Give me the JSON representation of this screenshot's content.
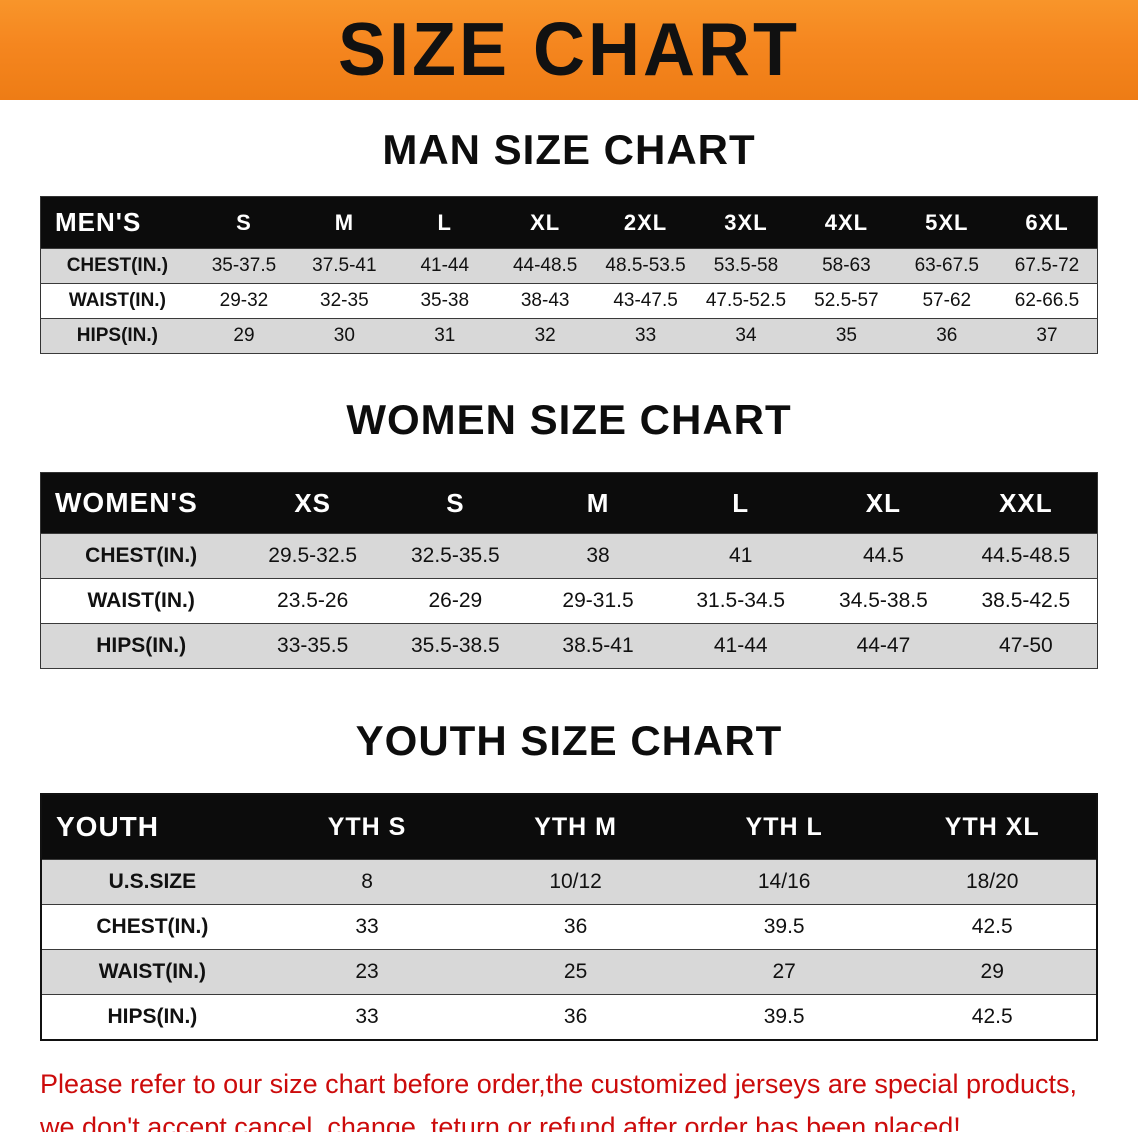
{
  "banner": {
    "title": "SIZE CHART",
    "bg_color": "#f5861f"
  },
  "sections": [
    {
      "heading": "MAN SIZE CHART",
      "table": {
        "header": [
          "MEN'S",
          "S",
          "M",
          "L",
          "XL",
          "2XL",
          "3XL",
          "4XL",
          "5XL",
          "6XL"
        ],
        "rows": [
          {
            "label": "CHEST(IN.)",
            "values": [
              "35-37.5",
              "37.5-41",
              "41-44",
              "44-48.5",
              "48.5-53.5",
              "53.5-58",
              "58-63",
              "63-67.5",
              "67.5-72"
            ]
          },
          {
            "label": "WAIST(IN.)",
            "values": [
              "29-32",
              "32-35",
              "35-38",
              "38-43",
              "43-47.5",
              "47.5-52.5",
              "52.5-57",
              "57-62",
              "62-66.5"
            ]
          },
          {
            "label": "HIPS(IN.)",
            "values": [
              "29",
              "30",
              "31",
              "32",
              "33",
              "34",
              "35",
              "36",
              "37"
            ]
          }
        ]
      }
    },
    {
      "heading": "WOMEN SIZE CHART",
      "table": {
        "header": [
          "WOMEN'S",
          "XS",
          "S",
          "M",
          "L",
          "XL",
          "XXL"
        ],
        "rows": [
          {
            "label": "CHEST(IN.)",
            "values": [
              "29.5-32.5",
              "32.5-35.5",
              "38",
              "41",
              "44.5",
              "44.5-48.5"
            ]
          },
          {
            "label": "WAIST(IN.)",
            "values": [
              "23.5-26",
              "26-29",
              "29-31.5",
              "31.5-34.5",
              "34.5-38.5",
              "38.5-42.5"
            ]
          },
          {
            "label": "HIPS(IN.)",
            "values": [
              "33-35.5",
              "35.5-38.5",
              "38.5-41",
              "41-44",
              "44-47",
              "47-50"
            ]
          }
        ]
      }
    },
    {
      "heading": "YOUTH SIZE CHART",
      "table": {
        "header": [
          "YOUTH",
          "YTH S",
          "YTH M",
          "YTH L",
          "YTH XL"
        ],
        "rows": [
          {
            "label": "U.S.SIZE",
            "values": [
              "8",
              "10/12",
              "14/16",
              "18/20"
            ]
          },
          {
            "label": "CHEST(IN.)",
            "values": [
              "33",
              "36",
              "39.5",
              "42.5"
            ]
          },
          {
            "label": "WAIST(IN.)",
            "values": [
              "23",
              "25",
              "27",
              "29"
            ]
          },
          {
            "label": "HIPS(IN.)",
            "values": [
              "33",
              "36",
              "39.5",
              "42.5"
            ]
          }
        ]
      }
    }
  ],
  "footer": {
    "line1": "Please refer to our size chart before order,the customized jerseys are special products,",
    "line2": "we don't accept cancel, change, teturn or refund after order has been placed!",
    "color": "#cc0b0b"
  }
}
